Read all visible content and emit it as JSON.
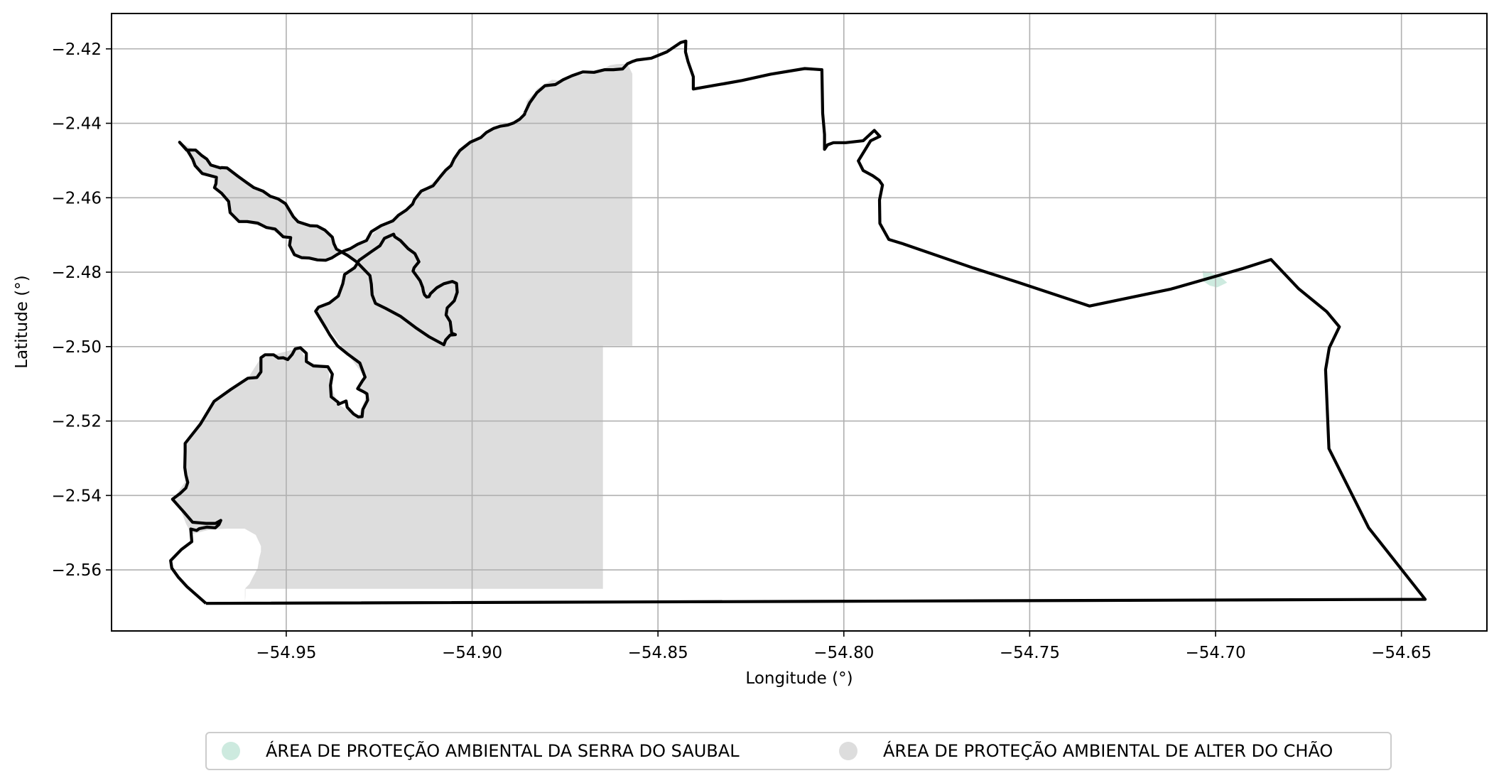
{
  "map": {
    "x_axis": {
      "label": "Longitude (°)",
      "ticks": [
        -54.95,
        -54.9,
        -54.85,
        -54.8,
        -54.75,
        -54.7,
        -54.65
      ],
      "tick_labels": [
        "−54.95",
        "−54.90",
        "−54.85",
        "−54.80",
        "−54.75",
        "−54.70",
        "−54.65"
      ],
      "range": [
        -54.997,
        -54.627
      ]
    },
    "y_axis": {
      "label": "Latitude (°)",
      "ticks": [
        -2.42,
        -2.44,
        -2.46,
        -2.48,
        -2.5,
        -2.52,
        -2.54,
        -2.56
      ],
      "tick_labels": [
        "−2.42",
        "−2.44",
        "−2.46",
        "−2.48",
        "−2.50",
        "−2.52",
        "−2.54",
        "−2.56"
      ],
      "range": [
        -2.5764,
        -2.4105
      ]
    },
    "grid": true,
    "legend_position": "bottom-center",
    "colors": {
      "boundary": "#000000",
      "alter_do_chao_fill": "#dddddd",
      "serra_do_saubal_fill": "#cdeadf",
      "grid": "#b0b0b0",
      "frame": "#000000"
    },
    "legend": [
      {
        "label": "ÁREA DE PROTEÇÃO AMBIENTAL DA SERRA DO SAUBAL",
        "color": "#cdeadf"
      },
      {
        "label": "ÁREA DE PROTEÇÃO AMBIENTAL DE ALTER DO CHÃO",
        "color": "#dddddd"
      }
    ],
    "municipal_boundary": [
      [
        -54.9716,
        -2.569
      ],
      [
        -54.9767,
        -2.5645
      ],
      [
        -54.979,
        -2.562
      ],
      [
        -54.9808,
        -2.5595
      ],
      [
        -54.9811,
        -2.5575
      ],
      [
        -54.9782,
        -2.5545
      ],
      [
        -54.9754,
        -2.5524
      ],
      [
        -54.9757,
        -2.549
      ],
      [
        -54.9741,
        -2.5494
      ],
      [
        -54.9734,
        -2.5489
      ],
      [
        -54.9714,
        -2.5485
      ],
      [
        -54.9691,
        -2.5487
      ],
      [
        -54.9681,
        -2.5478
      ],
      [
        -54.9676,
        -2.5467
      ],
      [
        -54.969,
        -2.5475
      ],
      [
        -54.9701,
        -2.5475
      ],
      [
        -54.9716,
        -2.5475
      ],
      [
        -54.9752,
        -2.5472
      ],
      [
        -54.9775,
        -2.5445
      ],
      [
        -54.9806,
        -2.541
      ],
      [
        -54.9786,
        -2.5395
      ],
      [
        -54.977,
        -2.538
      ],
      [
        -54.9765,
        -2.5365
      ],
      [
        -54.977,
        -2.5345
      ],
      [
        -54.9773,
        -2.5325
      ],
      [
        -54.9772,
        -2.5282
      ],
      [
        -54.9772,
        -2.526
      ],
      [
        -54.9731,
        -2.5208
      ],
      [
        -54.9694,
        -2.5147
      ],
      [
        -54.9649,
        -2.5115
      ],
      [
        -54.9603,
        -2.5085
      ],
      [
        -54.9579,
        -2.5083
      ],
      [
        -54.9568,
        -2.5068
      ],
      [
        -54.9568,
        -2.503
      ],
      [
        -54.9557,
        -2.5022
      ],
      [
        -54.9534,
        -2.5022
      ],
      [
        -54.9521,
        -2.5031
      ],
      [
        -54.9508,
        -2.503
      ],
      [
        -54.9496,
        -2.5035
      ],
      [
        -54.9484,
        -2.5021
      ],
      [
        -54.9476,
        -2.5006
      ],
      [
        -54.9462,
        -2.5003
      ],
      [
        -54.9446,
        -2.5018
      ],
      [
        -54.9446,
        -2.504
      ],
      [
        -54.9427,
        -2.5052
      ],
      [
        -54.9388,
        -2.5054
      ],
      [
        -54.9376,
        -2.5074
      ],
      [
        -54.9381,
        -2.5104
      ],
      [
        -54.9379,
        -2.5135
      ],
      [
        -54.936,
        -2.515
      ],
      [
        -54.936,
        -2.5155
      ],
      [
        -54.9339,
        -2.5146
      ],
      [
        -54.9336,
        -2.5163
      ],
      [
        -54.9319,
        -2.5181
      ],
      [
        -54.9306,
        -2.5189
      ],
      [
        -54.9296,
        -2.5188
      ],
      [
        -54.9294,
        -2.5169
      ],
      [
        -54.9281,
        -2.5144
      ],
      [
        -54.9283,
        -2.5127
      ],
      [
        -54.9289,
        -2.5123
      ],
      [
        -54.9308,
        -2.5113
      ],
      [
        -54.9295,
        -2.5092
      ],
      [
        -54.9288,
        -2.5082
      ],
      [
        -54.9302,
        -2.5044
      ],
      [
        -54.9336,
        -2.5019
      ],
      [
        -54.9362,
        -2.4998
      ],
      [
        -54.9383,
        -2.4968
      ],
      [
        -54.9393,
        -2.4951
      ],
      [
        -54.9421,
        -2.4905
      ],
      [
        -54.9413,
        -2.4894
      ],
      [
        -54.9384,
        -2.4883
      ],
      [
        -54.936,
        -2.4864
      ],
      [
        -54.9348,
        -2.4831
      ],
      [
        -54.9343,
        -2.4806
      ],
      [
        -54.9316,
        -2.4788
      ],
      [
        -54.9304,
        -2.4768
      ],
      [
        -54.9271,
        -2.4745
      ],
      [
        -54.9248,
        -2.4729
      ],
      [
        -54.9236,
        -2.4709
      ],
      [
        -54.9211,
        -2.4698
      ],
      [
        -54.9208,
        -2.4705
      ],
      [
        -54.9193,
        -2.4715
      ],
      [
        -54.9172,
        -2.4737
      ],
      [
        -54.9154,
        -2.475
      ],
      [
        -54.9143,
        -2.4772
      ],
      [
        -54.9156,
        -2.4788
      ],
      [
        -54.9159,
        -2.4797
      ],
      [
        -54.914,
        -2.4823
      ],
      [
        -54.9133,
        -2.4841
      ],
      [
        -54.9131,
        -2.4852
      ],
      [
        -54.9128,
        -2.4861
      ],
      [
        -54.9122,
        -2.4867
      ],
      [
        -54.9116,
        -2.4866
      ],
      [
        -54.9112,
        -2.4858
      ],
      [
        -54.9095,
        -2.4842
      ],
      [
        -54.9076,
        -2.4831
      ],
      [
        -54.9053,
        -2.4825
      ],
      [
        -54.9042,
        -2.483
      ],
      [
        -54.904,
        -2.4854
      ],
      [
        -54.9048,
        -2.4877
      ],
      [
        -54.9067,
        -2.4896
      ],
      [
        -54.907,
        -2.4915
      ],
      [
        -54.9059,
        -2.4933
      ],
      [
        -54.9055,
        -2.4964
      ],
      [
        -54.9045,
        -2.4968
      ],
      [
        -54.9059,
        -2.4969
      ],
      [
        -54.9071,
        -2.4982
      ],
      [
        -54.9076,
        -2.4995
      ],
      [
        -54.9115,
        -2.4974
      ],
      [
        -54.9152,
        -2.4949
      ],
      [
        -54.9192,
        -2.4919
      ],
      [
        -54.9233,
        -2.4897
      ],
      [
        -54.926,
        -2.4884
      ],
      [
        -54.9269,
        -2.4861
      ],
      [
        -54.9271,
        -2.4832
      ],
      [
        -54.9275,
        -2.4809
      ],
      [
        -54.9311,
        -2.4772
      ],
      [
        -54.9335,
        -2.4755
      ],
      [
        -54.9365,
        -2.4738
      ],
      [
        -54.9372,
        -2.4723
      ],
      [
        -54.9376,
        -2.4706
      ],
      [
        -54.9396,
        -2.4687
      ],
      [
        -54.9417,
        -2.4676
      ],
      [
        -54.9436,
        -2.4675
      ],
      [
        -54.9468,
        -2.4665
      ],
      [
        -54.9481,
        -2.4651
      ],
      [
        -54.9502,
        -2.4616
      ],
      [
        -54.9522,
        -2.4603
      ],
      [
        -54.9543,
        -2.4596
      ],
      [
        -54.9563,
        -2.4582
      ],
      [
        -54.9587,
        -2.4573
      ],
      [
        -54.9604,
        -2.4561
      ],
      [
        -54.9629,
        -2.4543
      ],
      [
        -54.9659,
        -2.452
      ],
      [
        -54.9674,
        -2.4519
      ],
      [
        -54.9677,
        -2.452
      ],
      [
        -54.9703,
        -2.4512
      ],
      [
        -54.9714,
        -2.4496
      ],
      [
        -54.9728,
        -2.4486
      ],
      [
        -54.9744,
        -2.4472
      ],
      [
        -54.9768,
        -2.4472
      ],
      [
        -54.9787,
        -2.4451
      ],
      [
        -54.9765,
        -2.4474
      ],
      [
        -54.9752,
        -2.4496
      ],
      [
        -54.9745,
        -2.4514
      ],
      [
        -54.9726,
        -2.4535
      ],
      [
        -54.9688,
        -2.4545
      ],
      [
        -54.9689,
        -2.4562
      ],
      [
        -54.9693,
        -2.4573
      ],
      [
        -54.9674,
        -2.4588
      ],
      [
        -54.9655,
        -2.461
      ],
      [
        -54.9651,
        -2.464
      ],
      [
        -54.9627,
        -2.4664
      ],
      [
        -54.9605,
        -2.4664
      ],
      [
        -54.9577,
        -2.4668
      ],
      [
        -54.9553,
        -2.468
      ],
      [
        -54.953,
        -2.4684
      ],
      [
        -54.9508,
        -2.4705
      ],
      [
        -54.9488,
        -2.4707
      ],
      [
        -54.9491,
        -2.4728
      ],
      [
        -54.9478,
        -2.4753
      ],
      [
        -54.9459,
        -2.4761
      ],
      [
        -54.9439,
        -2.4762
      ],
      [
        -54.9416,
        -2.4767
      ],
      [
        -54.9394,
        -2.4768
      ],
      [
        -54.9378,
        -2.4762
      ],
      [
        -54.9362,
        -2.4752
      ],
      [
        -54.9345,
        -2.4743
      ],
      [
        -54.9328,
        -2.4737
      ],
      [
        -54.9308,
        -2.4725
      ],
      [
        -54.9284,
        -2.4715
      ],
      [
        -54.9271,
        -2.4691
      ],
      [
        -54.9245,
        -2.4675
      ],
      [
        -54.9213,
        -2.4662
      ],
      [
        -54.9198,
        -2.4647
      ],
      [
        -54.9177,
        -2.4633
      ],
      [
        -54.916,
        -2.4617
      ],
      [
        -54.9155,
        -2.4605
      ],
      [
        -54.9137,
        -2.4582
      ],
      [
        -54.9105,
        -2.4568
      ],
      [
        -54.9086,
        -2.4544
      ],
      [
        -54.9071,
        -2.4526
      ],
      [
        -54.9057,
        -2.4514
      ],
      [
        -54.9048,
        -2.4495
      ],
      [
        -54.9033,
        -2.4473
      ],
      [
        -54.9005,
        -2.4451
      ],
      [
        -54.8976,
        -2.4438
      ],
      [
        -54.8962,
        -2.4425
      ],
      [
        -54.8943,
        -2.4414
      ],
      [
        -54.8925,
        -2.4408
      ],
      [
        -54.8905,
        -2.4405
      ],
      [
        -54.8888,
        -2.4399
      ],
      [
        -54.8872,
        -2.4389
      ],
      [
        -54.8859,
        -2.4376
      ],
      [
        -54.8858,
        -2.4372
      ]
    ],
    "boundary_note": "",
    "alter_do_chao_region": [
      [
        -54.9611,
        -2.5689
      ],
      [
        -54.961,
        -2.5668
      ],
      [
        -54.961,
        -2.5649
      ],
      [
        -54.9599,
        -2.5638
      ],
      [
        -54.959,
        -2.562
      ],
      [
        -54.9577,
        -2.5596
      ],
      [
        -54.9573,
        -2.557
      ],
      [
        -54.9568,
        -2.5551
      ],
      [
        -54.9568,
        -2.5536
      ],
      [
        -54.9582,
        -2.5506
      ],
      [
        -54.9612,
        -2.5489
      ],
      [
        -54.9657,
        -2.5489
      ],
      [
        -54.9702,
        -2.5491
      ],
      [
        -54.9755,
        -2.5504
      ],
      [
        -54.977,
        -2.5475
      ],
      [
        -54.9785,
        -2.5435
      ],
      [
        -54.9805,
        -2.541
      ],
      [
        -54.9773,
        -2.5365
      ],
      [
        -54.9772,
        -2.526
      ],
      [
        -54.9694,
        -2.5147
      ],
      [
        -54.9603,
        -2.5085
      ],
      [
        -54.9568,
        -2.503
      ],
      [
        -54.9534,
        -2.5022
      ],
      [
        -54.9462,
        -2.5003
      ],
      [
        -54.9446,
        -2.504
      ],
      [
        -54.9388,
        -2.5054
      ],
      [
        -54.9381,
        -2.5104
      ],
      [
        -54.936,
        -2.5155
      ],
      [
        -54.9306,
        -2.5189
      ],
      [
        -54.9283,
        -2.5127
      ],
      [
        -54.9308,
        -2.5113
      ],
      [
        -54.9288,
        -2.5082
      ],
      [
        -54.9336,
        -2.5019
      ],
      [
        -54.9421,
        -2.4905
      ],
      [
        -54.936,
        -2.4864
      ],
      [
        -54.9343,
        -2.4806
      ],
      [
        -54.9304,
        -2.4768
      ],
      [
        -54.9236,
        -2.4709
      ],
      [
        -54.9211,
        -2.4698
      ],
      [
        -54.9154,
        -2.475
      ],
      [
        -54.9143,
        -2.4772
      ],
      [
        -54.9159,
        -2.4797
      ],
      [
        -54.9131,
        -2.4852
      ],
      [
        -54.9116,
        -2.4866
      ],
      [
        -54.9095,
        -2.4842
      ],
      [
        -54.9053,
        -2.4825
      ],
      [
        -54.904,
        -2.4854
      ],
      [
        -54.9067,
        -2.4896
      ],
      [
        -54.9059,
        -2.4933
      ],
      [
        -54.9055,
        -2.4964
      ],
      [
        -54.9076,
        -2.4995
      ],
      [
        -54.9115,
        -2.4974
      ],
      [
        -54.9192,
        -2.4919
      ],
      [
        -54.926,
        -2.4884
      ],
      [
        -54.9275,
        -2.4809
      ],
      [
        -54.9311,
        -2.4772
      ],
      [
        -54.9365,
        -2.4738
      ],
      [
        -54.9376,
        -2.4706
      ],
      [
        -54.9417,
        -2.4676
      ],
      [
        -54.9468,
        -2.4665
      ],
      [
        -54.9502,
        -2.4616
      ],
      [
        -54.9563,
        -2.4582
      ],
      [
        -54.9604,
        -2.4561
      ],
      [
        -54.9659,
        -2.452
      ],
      [
        -54.9703,
        -2.4512
      ],
      [
        -54.9744,
        -2.4472
      ],
      [
        -54.9787,
        -2.4451
      ],
      [
        -54.9745,
        -2.4514
      ],
      [
        -54.9726,
        -2.4535
      ],
      [
        -54.9688,
        -2.4545
      ],
      [
        -54.9693,
        -2.4573
      ],
      [
        -54.9655,
        -2.461
      ],
      [
        -54.9651,
        -2.464
      ],
      [
        -54.9627,
        -2.4664
      ],
      [
        -54.9553,
        -2.468
      ],
      [
        -54.9508,
        -2.4705
      ],
      [
        -54.9488,
        -2.4707
      ],
      [
        -54.9491,
        -2.4728
      ],
      [
        -54.9478,
        -2.4753
      ],
      [
        -54.9439,
        -2.4762
      ],
      [
        -54.9394,
        -2.4768
      ],
      [
        -54.9345,
        -2.4743
      ],
      [
        -54.9284,
        -2.4715
      ],
      [
        -54.9245,
        -2.4675
      ],
      [
        -54.9198,
        -2.4647
      ],
      [
        -54.916,
        -2.4617
      ],
      [
        -54.9137,
        -2.4582
      ],
      [
        -54.9086,
        -2.4544
      ],
      [
        -54.9057,
        -2.4514
      ],
      [
        -54.9033,
        -2.4473
      ],
      [
        -54.8976,
        -2.4438
      ],
      [
        -54.8943,
        -2.4414
      ],
      [
        -54.8905,
        -2.4405
      ],
      [
        -54.8872,
        -2.4389
      ],
      [
        -54.8858,
        -2.4372
      ],
      [
        -54.8853,
        -2.434
      ],
      [
        -54.8832,
        -2.4319
      ],
      [
        -54.8826,
        -2.4308
      ],
      [
        -54.8785,
        -2.4283
      ],
      [
        -54.8763,
        -2.4285
      ],
      [
        -54.8749,
        -2.4284
      ],
      [
        -54.8729,
        -2.4272
      ],
      [
        -54.8708,
        -2.4269
      ],
      [
        -54.8676,
        -2.4266
      ],
      [
        -54.8651,
        -2.4256
      ],
      [
        -54.8629,
        -2.4244
      ],
      [
        -54.8611,
        -2.4241
      ],
      [
        -54.8582,
        -2.424
      ],
      [
        -54.8569,
        -2.4267
      ],
      [
        -54.8569,
        -2.4998
      ],
      [
        -54.8648,
        -2.4998
      ],
      [
        -54.8648,
        -2.5651
      ],
      [
        -54.9611,
        -2.5651
      ]
    ],
    "serra_do_saubal_region": [
      [
        -54.7035,
        -2.4796
      ],
      [
        -54.7014,
        -2.4801
      ],
      [
        -54.6987,
        -2.4812
      ],
      [
        -54.6969,
        -2.4828
      ],
      [
        -54.6996,
        -2.4841
      ],
      [
        -54.7016,
        -2.4836
      ],
      [
        -54.7032,
        -2.4825
      ]
    ]
  }
}
